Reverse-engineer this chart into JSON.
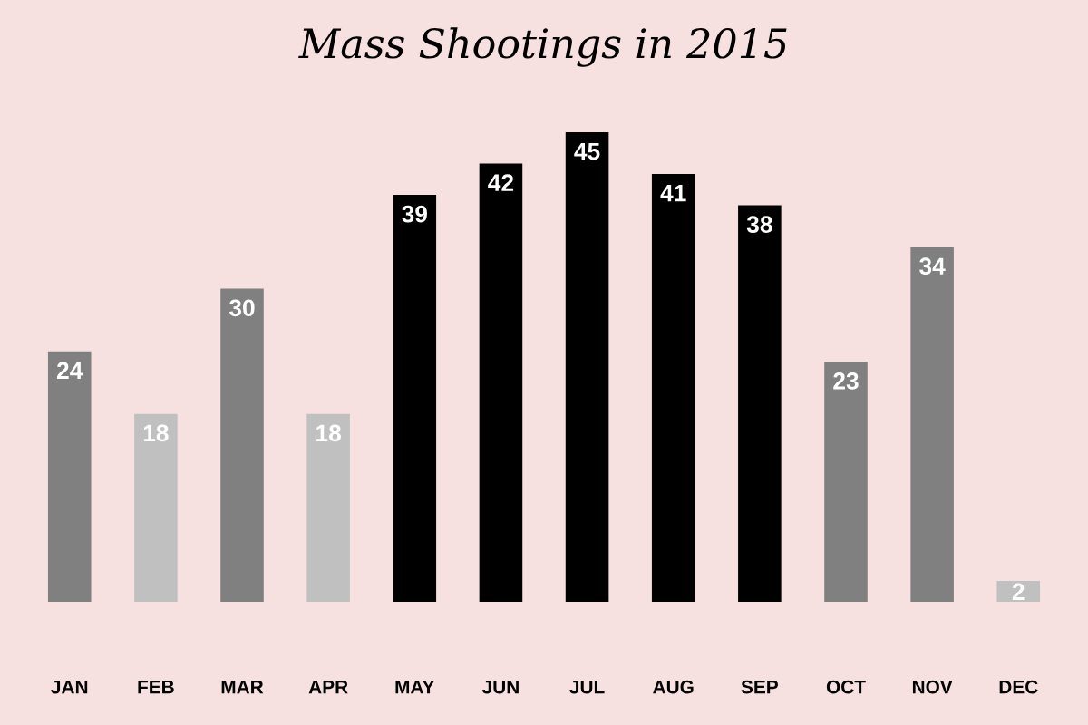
{
  "chart_data": {
    "type": "bar",
    "title": "Mass Shootings in 2015",
    "categories": [
      "JAN",
      "FEB",
      "MAR",
      "APR",
      "MAY",
      "JUN",
      "JUL",
      "AUG",
      "SEP",
      "OCT",
      "NOV",
      "DEC"
    ],
    "values": [
      24,
      18,
      30,
      18,
      39,
      42,
      45,
      41,
      38,
      23,
      34,
      2
    ],
    "colors": [
      "#808080",
      "#c0c0c0",
      "#808080",
      "#c0c0c0",
      "#000000",
      "#000000",
      "#000000",
      "#000000",
      "#000000",
      "#808080",
      "#808080",
      "#c0c0c0"
    ],
    "data_labels": true,
    "grid": false,
    "legend": false
  }
}
